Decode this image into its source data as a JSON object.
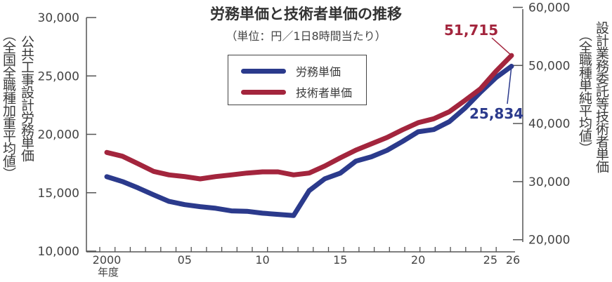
{
  "chart_data": {
    "type": "line",
    "title": "労務単価と技術者単価の推移",
    "subtitle": "（単位：円／1日8時間当たり）",
    "xlabel": "年度",
    "x": [
      2000,
      2001,
      2002,
      2003,
      2004,
      2005,
      2006,
      2007,
      2008,
      2009,
      2010,
      2011,
      2012,
      2013,
      2014,
      2015,
      2016,
      2017,
      2018,
      2019,
      2020,
      2021,
      2022,
      2023,
      2024,
      2025,
      2026
    ],
    "x_tick_labels": [
      {
        "x": 2000,
        "label": "2000"
      },
      {
        "x": 2005,
        "label": "05"
      },
      {
        "x": 2010,
        "label": "10"
      },
      {
        "x": 2015,
        "label": "15"
      },
      {
        "x": 2020,
        "label": "20"
      },
      {
        "x": 2025,
        "label": "25"
      },
      {
        "x": 2026,
        "label": "26"
      }
    ],
    "y_left": {
      "label_main": "公共工事設計労務単価",
      "label_sub": "（全国全職種加重平均値）",
      "ylim": [
        10000,
        30000
      ],
      "ticks": [
        "10,000",
        "15,000",
        "20,000",
        "25,000",
        "30,000"
      ],
      "tick_values": [
        10000,
        15000,
        20000,
        25000,
        30000
      ]
    },
    "y_right": {
      "label_main": "設計業務委託等技術者単価",
      "label_sub": "（全職種単純平均値）",
      "ylim": [
        20000,
        60000
      ],
      "ticks": [
        "20,000",
        "30,000",
        "40,000",
        "50,000",
        "60,000"
      ],
      "tick_values": [
        20000,
        30000,
        40000,
        50000,
        60000
      ]
    },
    "series": [
      {
        "name": "労務単価",
        "axis": "left",
        "color": "#2b3a8c",
        "values": [
          16370,
          15960,
          15420,
          14820,
          14260,
          13980,
          13810,
          13670,
          13450,
          13410,
          13250,
          13150,
          13047,
          15175,
          16190,
          16678,
          17704,
          18078,
          18632,
          19392,
          20214,
          20409,
          21084,
          22227,
          23600,
          24852,
          25834
        ]
      },
      {
        "name": "技術者単価",
        "axis": "right",
        "color": "#a3253d",
        "values": [
          35020,
          34370,
          33090,
          31760,
          31160,
          30870,
          30470,
          30870,
          31160,
          31470,
          31680,
          31680,
          31160,
          31470,
          32680,
          34090,
          35420,
          36510,
          37600,
          38930,
          40140,
          40820,
          42030,
          43960,
          45970,
          48990,
          51715
        ]
      }
    ],
    "annotations": [
      {
        "series": "技術者単価",
        "x": 2026,
        "text": "51,715"
      },
      {
        "series": "労務単価",
        "x": 2026,
        "text": "25,834"
      }
    ],
    "legend_position": "top-center",
    "grid": false
  }
}
